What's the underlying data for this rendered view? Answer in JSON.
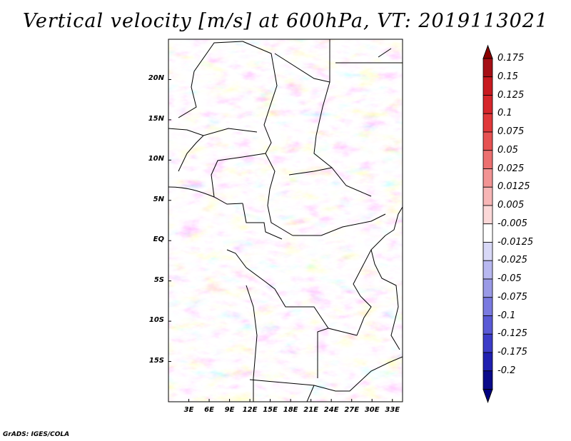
{
  "title": "Vertical velocity [m/s] at 600hPa, VT: 2019113021",
  "footer": "GrADS: IGES/COLA",
  "map": {
    "lat_labels": [
      "20N",
      "15N",
      "10N",
      "5N",
      "EQ",
      "5S",
      "10S",
      "15S"
    ],
    "lon_labels": [
      "3E",
      "6E",
      "9E",
      "12E",
      "15E",
      "18E",
      "21E",
      "24E",
      "27E",
      "30E",
      "33E"
    ],
    "lat_values": [
      20,
      15,
      10,
      5,
      0,
      -5,
      -10,
      -15
    ],
    "lon_values": [
      3,
      6,
      9,
      12,
      15,
      18,
      21,
      24,
      27,
      30,
      33
    ],
    "lon_range": [
      0,
      34.5
    ],
    "lat_range": [
      -20,
      25
    ]
  },
  "colorbar": {
    "labels": [
      "0.175",
      "0.15",
      "0.125",
      "0.1",
      "0.075",
      "0.05",
      "0.025",
      "0.0125",
      "0.005",
      "-0.005",
      "-0.0125",
      "-0.025",
      "-0.05",
      "-0.075",
      "-0.1",
      "-0.125",
      "-0.175",
      "-0.2"
    ],
    "colors": [
      "#a50f15",
      "#c81a20",
      "#d6262b",
      "#e0383a",
      "#e65252",
      "#ec7070",
      "#f29494",
      "#f7b6b6",
      "#fbd8d8",
      "#ffffff",
      "#d8d8f7",
      "#b8b8f0",
      "#9a9ae6",
      "#7a7ae0",
      "#5a5ad6",
      "#3c3cc8",
      "#2020b0",
      "#0a0a8a"
    ],
    "top_arrow_color": "#8b0000",
    "bottom_arrow_color": "#000080"
  }
}
